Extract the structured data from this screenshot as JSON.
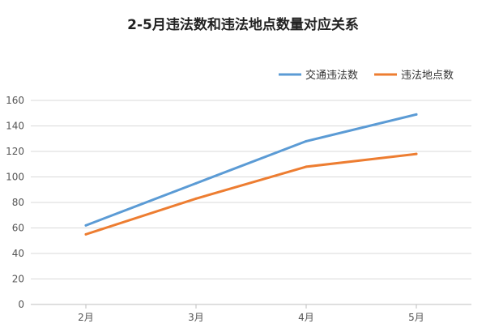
{
  "chart_data": {
    "type": "line",
    "title": "2-5月违法数和违法地点数量对应关系",
    "categories": [
      "2月",
      "3月",
      "4月",
      "5月"
    ],
    "series": [
      {
        "name": "交通违法数",
        "values": [
          62,
          95,
          128,
          149
        ],
        "color": "#5b9bd5"
      },
      {
        "name": "违法地点数",
        "values": [
          55,
          83,
          108,
          118
        ],
        "color": "#ed7d31"
      }
    ],
    "xlabel": "",
    "ylabel": "",
    "ylim": [
      0,
      160
    ],
    "yticks": [
      0,
      20,
      40,
      60,
      80,
      100,
      120,
      140,
      160
    ],
    "grid": true,
    "legend": "top-right"
  }
}
